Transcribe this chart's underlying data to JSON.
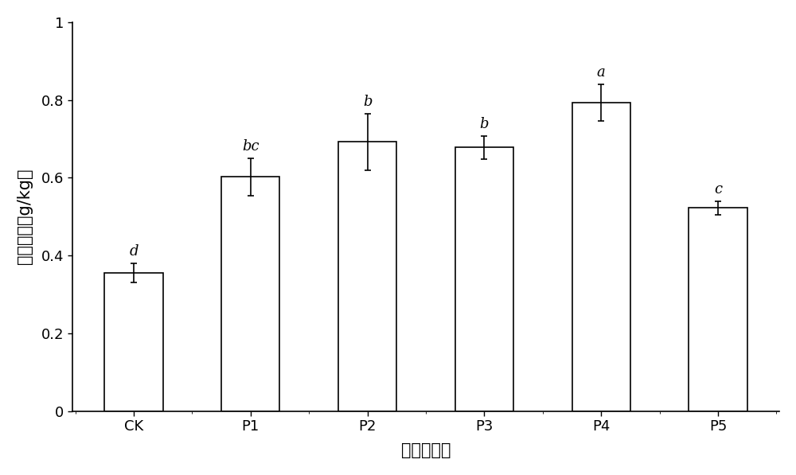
{
  "categories": [
    "CK",
    "P1",
    "P2",
    "P3",
    "P4",
    "P5"
  ],
  "values": [
    0.355,
    0.602,
    0.692,
    0.678,
    0.793,
    0.522
  ],
  "errors": [
    0.025,
    0.048,
    0.072,
    0.03,
    0.048,
    0.018
  ],
  "labels": [
    "d",
    "bc",
    "b",
    "b",
    "a",
    "c"
  ],
  "bar_color": "#ffffff",
  "bar_edgecolor": "#000000",
  "bar_linewidth": 1.2,
  "xlabel": "改良剂配方",
  "ylabel": "土壤全氮（g/kg）",
  "ylim": [
    0,
    1.0
  ],
  "yticks": [
    0,
    0.2,
    0.4,
    0.6,
    0.8,
    1.0
  ],
  "ytick_labels": [
    "0",
    "0.2",
    "0.4",
    "0.6",
    "0.8",
    "1"
  ],
  "title": "",
  "bar_width": 0.5,
  "capsize": 3,
  "xlabel_fontsize": 15,
  "ylabel_fontsize": 15,
  "tick_fontsize": 13,
  "label_fontsize": 13,
  "background_color": "#ffffff",
  "figure_width": 10.0,
  "figure_height": 5.97
}
